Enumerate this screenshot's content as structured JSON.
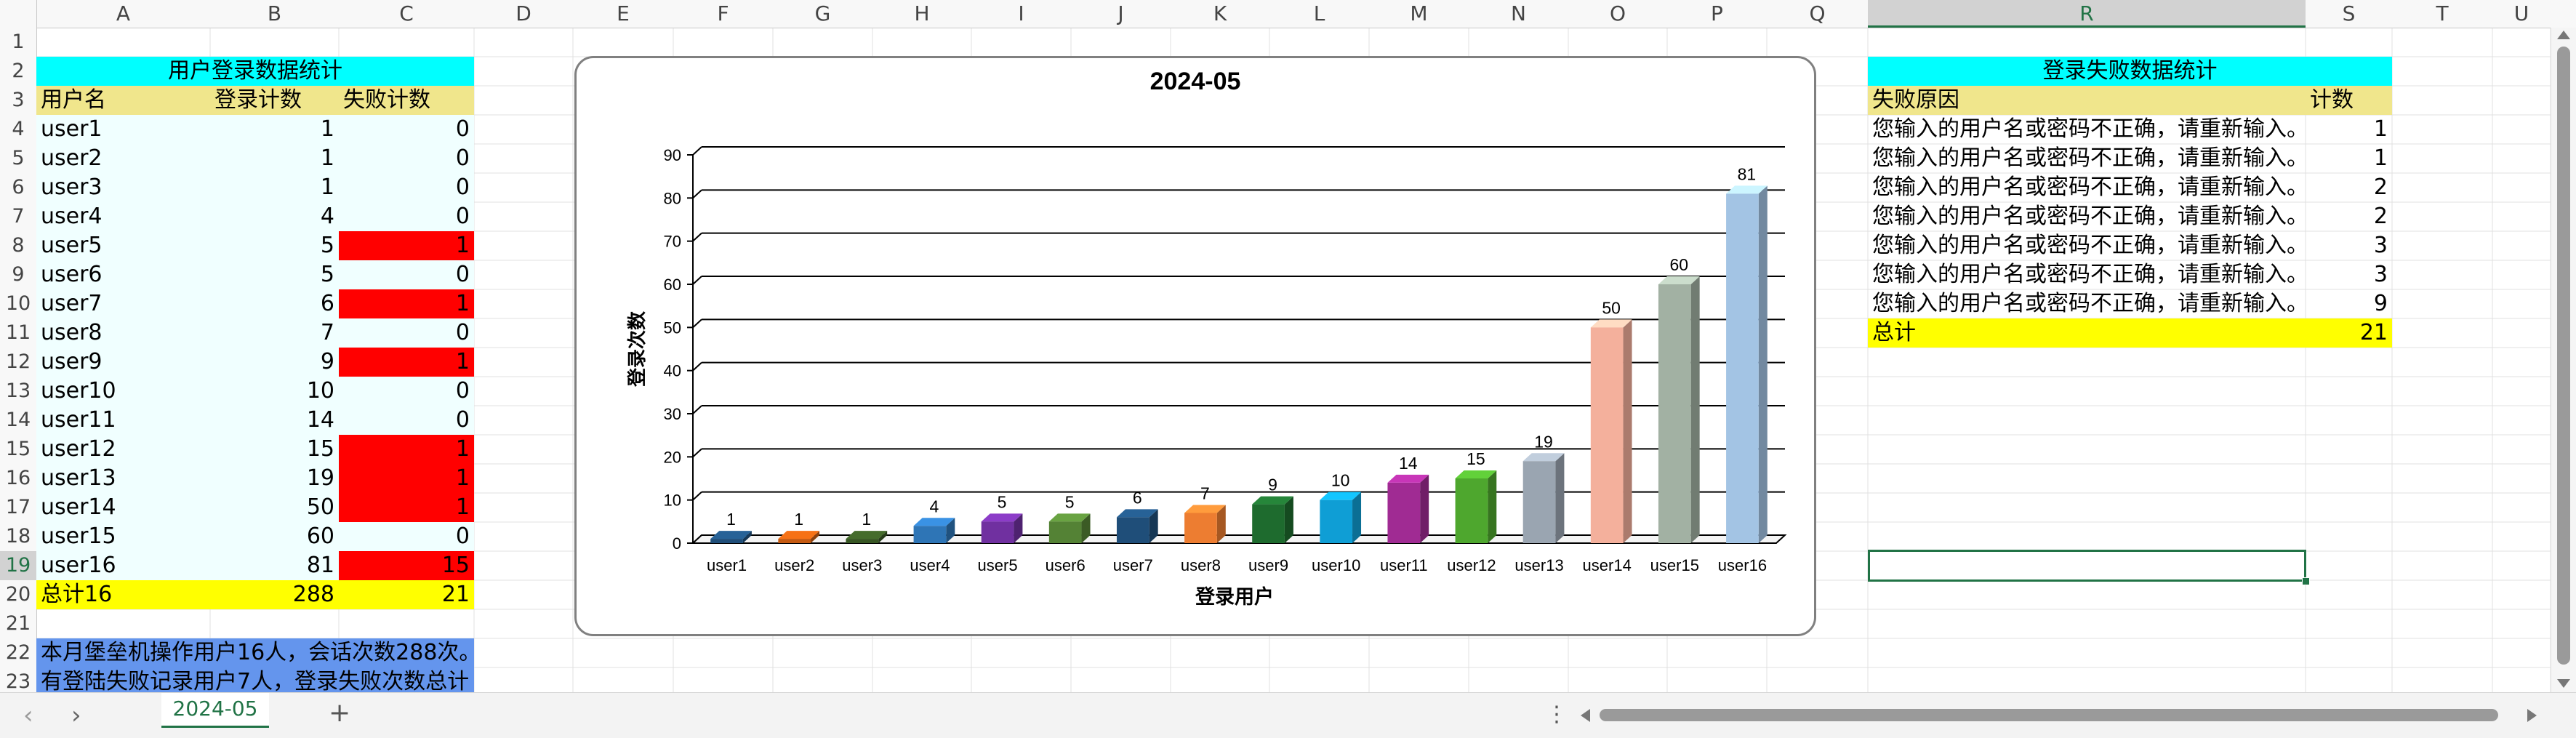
{
  "sheet": {
    "columns": [
      "A",
      "B",
      "C",
      "D",
      "E",
      "F",
      "G",
      "H",
      "I",
      "J",
      "K",
      "L",
      "M",
      "N",
      "O",
      "P",
      "Q",
      "R",
      "S",
      "T",
      "U"
    ],
    "rows": [
      "1",
      "2",
      "3",
      "4",
      "5",
      "6",
      "7",
      "8",
      "9",
      "10",
      "11",
      "12",
      "13",
      "14",
      "15",
      "16",
      "17",
      "18",
      "19",
      "20",
      "21",
      "22",
      "23"
    ],
    "selected_column": "R",
    "selected_row": "19"
  },
  "colors": {
    "cyan_header": "#00ffff",
    "khaki_header": "#f0e68c",
    "light_cyan_fill": "#f0ffff",
    "red_fill": "#ff0000",
    "yellow_fill": "#ffff00",
    "blue_note": "#6495ed",
    "selection_green": "#217346"
  },
  "login_table": {
    "title": "用户登录数据统计",
    "headers": [
      "用户名",
      "登录计数",
      "失败计数"
    ],
    "rows": [
      {
        "user": "user1",
        "login": "1",
        "fail": "0",
        "highlight": false
      },
      {
        "user": "user2",
        "login": "1",
        "fail": "0",
        "highlight": false
      },
      {
        "user": "user3",
        "login": "1",
        "fail": "0",
        "highlight": false
      },
      {
        "user": "user4",
        "login": "4",
        "fail": "0",
        "highlight": false
      },
      {
        "user": "user5",
        "login": "5",
        "fail": "1",
        "highlight": true
      },
      {
        "user": "user6",
        "login": "5",
        "fail": "0",
        "highlight": false
      },
      {
        "user": "user7",
        "login": "6",
        "fail": "1",
        "highlight": true
      },
      {
        "user": "user8",
        "login": "7",
        "fail": "0",
        "highlight": false
      },
      {
        "user": "user9",
        "login": "9",
        "fail": "1",
        "highlight": true
      },
      {
        "user": "user10",
        "login": "10",
        "fail": "0",
        "highlight": false
      },
      {
        "user": "user11",
        "login": "14",
        "fail": "0",
        "highlight": false
      },
      {
        "user": "user12",
        "login": "15",
        "fail": "1",
        "highlight": true
      },
      {
        "user": "user13",
        "login": "19",
        "fail": "1",
        "highlight": true
      },
      {
        "user": "user14",
        "login": "50",
        "fail": "1",
        "highlight": true
      },
      {
        "user": "user15",
        "login": "60",
        "fail": "0",
        "highlight": false
      },
      {
        "user": "user16",
        "login": "81",
        "fail": "15",
        "highlight": true
      }
    ],
    "total": {
      "user": "总计16",
      "login": "288",
      "fail": "21"
    }
  },
  "note": {
    "line1": "本月堡垒机操作用户16人，会话次数288次。",
    "line2": "有登陆失败记录用户7人，登录失败次数总计"
  },
  "fail_table": {
    "title": "登录失败数据统计",
    "headers": [
      "失败原因",
      "计数"
    ],
    "rows": [
      {
        "reason": "您输入的用户名或密码不正确，请重新输入。",
        "count": "1"
      },
      {
        "reason": "您输入的用户名或密码不正确，请重新输入。",
        "count": "1"
      },
      {
        "reason": "您输入的用户名或密码不正确，请重新输入。",
        "count": "2"
      },
      {
        "reason": "您输入的用户名或密码不正确，请重新输入。",
        "count": "2"
      },
      {
        "reason": "您输入的用户名或密码不正确，请重新输入。",
        "count": "3"
      },
      {
        "reason": "您输入的用户名或密码不正确，请重新输入。",
        "count": "3"
      },
      {
        "reason": "您输入的用户名或密码不正确，请重新输入。",
        "count": "9"
      }
    ],
    "total": {
      "label": "总计",
      "count": "21"
    }
  },
  "chart_data": {
    "type": "bar",
    "title": "2024-05",
    "xlabel": "登录用户",
    "ylabel": "登录次数",
    "ylim": [
      0,
      90
    ],
    "yticks": [
      "0",
      "10",
      "20",
      "30",
      "40",
      "50",
      "60",
      "70",
      "80",
      "90"
    ],
    "grid": true,
    "categories": [
      "user1",
      "user2",
      "user3",
      "user4",
      "user5",
      "user6",
      "user7",
      "user8",
      "user9",
      "user10",
      "user11",
      "user12",
      "user13",
      "user14",
      "user15",
      "user16"
    ],
    "values": [
      1,
      1,
      1,
      4,
      5,
      5,
      6,
      7,
      9,
      10,
      14,
      15,
      19,
      50,
      60,
      81
    ],
    "colors": [
      "#1f4e79",
      "#c55a11",
      "#375623",
      "#2e75b6",
      "#7030a0",
      "#548235",
      "#1f4e79",
      "#ed7d31",
      "#1e6b2e",
      "#0f9ed5",
      "#a02b93",
      "#4ea72e",
      "#9aa5b1",
      "#f4b09c",
      "#a2b1a3",
      "#a3c4e4"
    ]
  },
  "tabs": {
    "active": "2024-05",
    "prev_icon": "chevron-left-icon",
    "next_icon": "chevron-right-icon",
    "add_icon": "plus-icon",
    "more_icon": "ellipsis-vertical-icon"
  }
}
